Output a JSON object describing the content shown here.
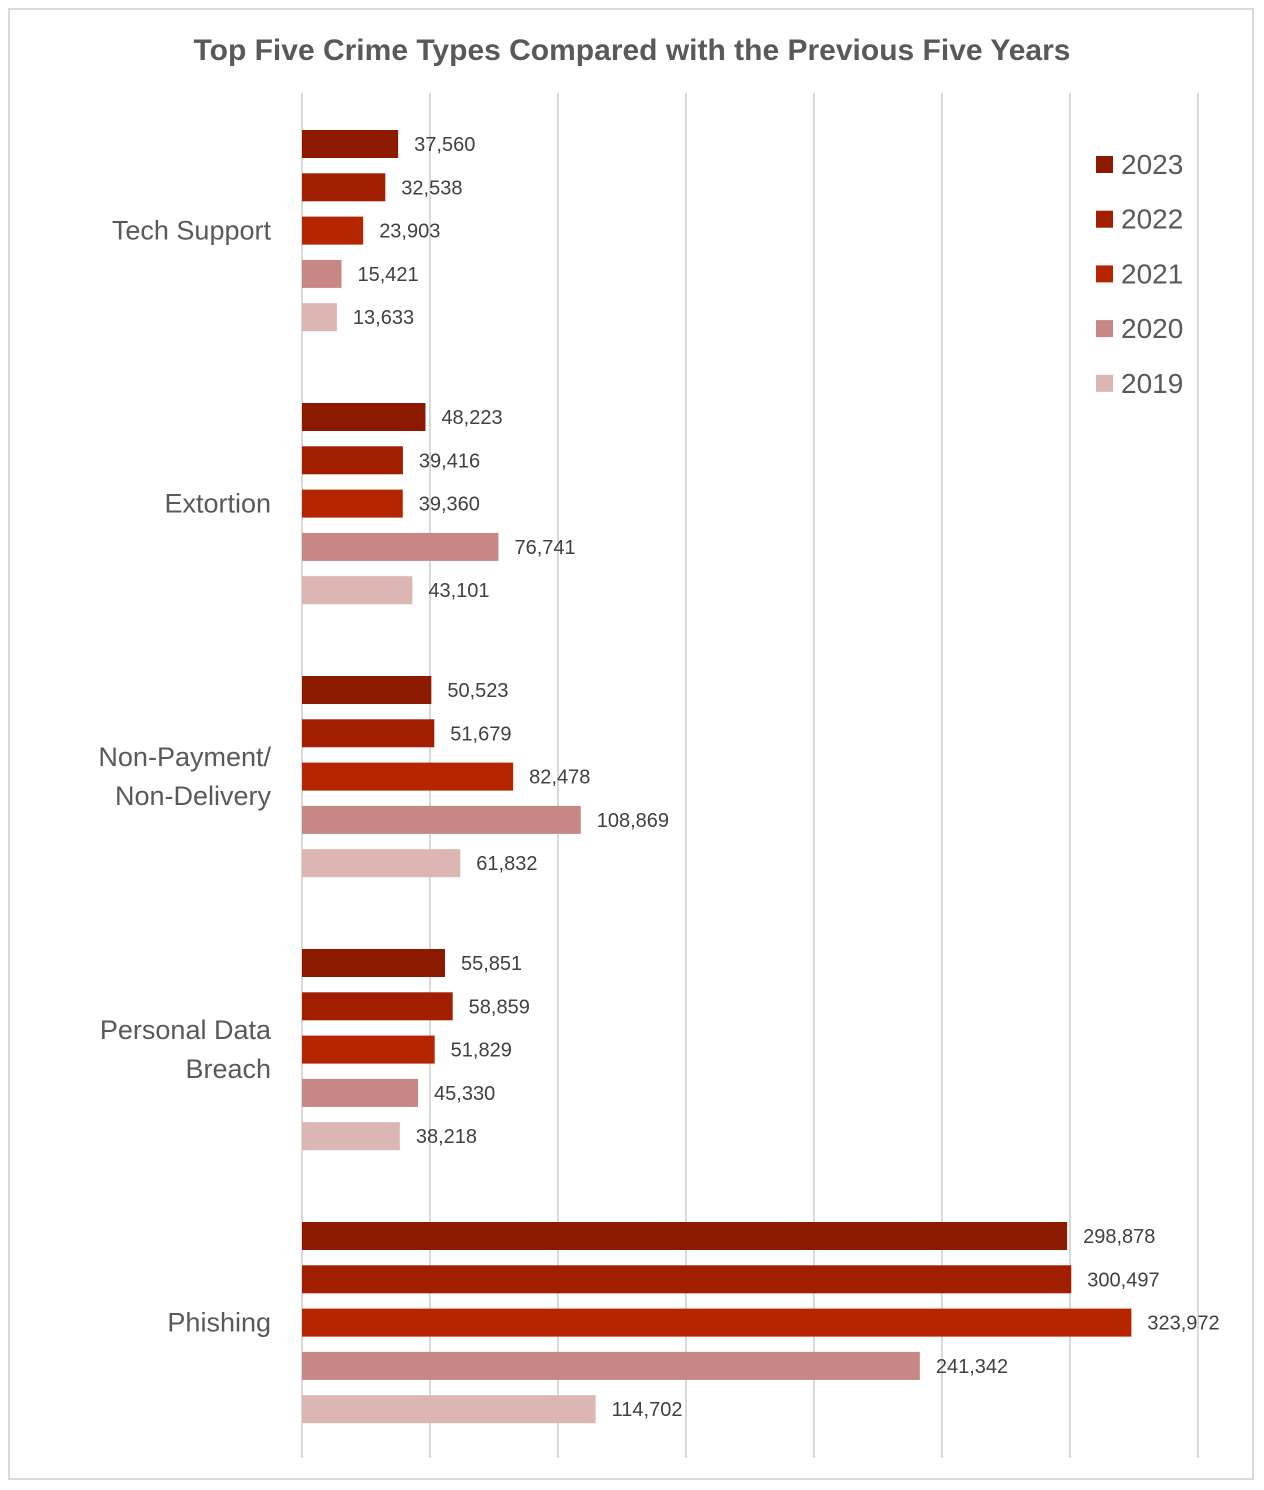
{
  "chart_data": {
    "type": "bar",
    "orientation": "horizontal",
    "title": "Top Five Crime Types Compared with the Previous Five Years",
    "categories": [
      [
        "Tech Support"
      ],
      [
        "Extortion"
      ],
      [
        "Non-Payment/",
        "Non-Delivery"
      ],
      [
        "Personal Data",
        "Breach"
      ],
      [
        "Phishing"
      ]
    ],
    "series": [
      {
        "name": "2023",
        "color": "#8b1a00",
        "values": [
          37560,
          48223,
          50523,
          55851,
          298878
        ],
        "labels": [
          "37,560",
          "48,223",
          "50,523",
          "55,851",
          "298,878"
        ]
      },
      {
        "name": "2022",
        "color": "#a11f00",
        "values": [
          32538,
          39416,
          51679,
          58859,
          300497
        ],
        "labels": [
          "32,538",
          "39,416",
          "51,679",
          "58,859",
          "300,497"
        ]
      },
      {
        "name": "2021",
        "color": "#b52500",
        "values": [
          23903,
          39360,
          82478,
          51829,
          323972
        ],
        "labels": [
          "23,903",
          "39,360",
          "82,478",
          "51,829",
          "323,972"
        ]
      },
      {
        "name": "2020",
        "color": "#c78785",
        "values": [
          15421,
          76741,
          108869,
          45330,
          241342
        ],
        "labels": [
          "15,421",
          "76,741",
          "108,869",
          "45,330",
          "241,342"
        ]
      },
      {
        "name": "2019",
        "color": "#dbb6b2",
        "values": [
          13633,
          43101,
          61832,
          38218,
          114702
        ],
        "labels": [
          "13,633",
          "43,101",
          "61,832",
          "38,218",
          "114,702"
        ]
      }
    ],
    "xlim": [
      0,
      350000
    ],
    "x_grid_step": 50000,
    "grid": true,
    "x_tick_labels_shown": false,
    "legend_position": "top-right"
  }
}
